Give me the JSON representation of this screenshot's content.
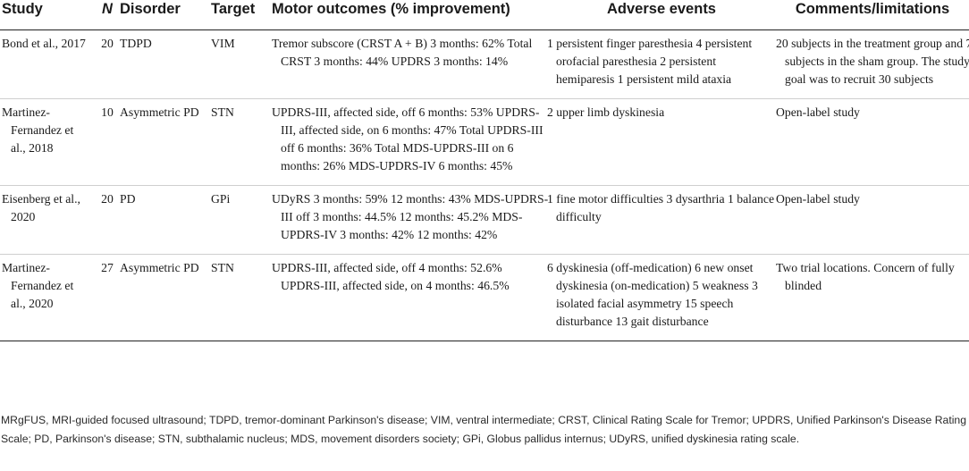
{
  "table": {
    "headers": {
      "study": "Study",
      "n": "N",
      "disorder": "Disorder",
      "target": "Target",
      "motor": "Motor outcomes (% improvement)",
      "adverse": "Adverse events",
      "comments": "Comments/limitations"
    },
    "rows": [
      {
        "study": "Bond et al., 2017",
        "n": "20",
        "disorder": "TDPD",
        "target": "VIM",
        "motor": "Tremor subscore (CRST A + B) 3 months: 62% Total CRST 3 months: 44% UPDRS 3 months: 14%",
        "adverse": "1 persistent finger paresthesia 4 persistent orofacial paresthesia 2 persistent hemiparesis 1 persistent mild ataxia",
        "comments": "20 subjects in the treatment group and 7 subjects in the sham group. The study goal was to recruit 30 subjects"
      },
      {
        "study": "Martinez-Fernandez et al., 2018",
        "n": "10",
        "disorder": "Asymmetric PD",
        "target": "STN",
        "motor": "UPDRS-III, affected side, off 6 months: 53% UPDRS-III, affected side, on 6 months: 47% Total UPDRS-III off 6 months: 36% Total MDS-UPDRS-III on 6 months: 26% MDS-UPDRS-IV 6 months: 45%",
        "adverse": "2 upper limb dyskinesia",
        "comments": "Open-label study"
      },
      {
        "study": "Eisenberg et al., 2020",
        "n": "20",
        "disorder": "PD",
        "target": "GPi",
        "motor": "UDyRS 3 months: 59% 12 months: 43% MDS-UPDRS-III off 3 months: 44.5% 12 months: 45.2% MDS-UPDRS-IV 3 months: 42% 12 months: 42%",
        "adverse": "1 fine motor difficulties 3 dysarthria 1 balance difficulty",
        "comments": "Open-label study"
      },
      {
        "study": "Martinez-Fernandez et al., 2020",
        "n": "27",
        "disorder": "Asymmetric PD",
        "target": "STN",
        "motor": "UPDRS-III, affected side, off 4 months: 52.6% UPDRS-III, affected side, on 4 months: 46.5%",
        "adverse": "6 dyskinesia (off-medication) 6 new onset dyskinesia (on-medication) 5 weakness 3 isolated facial asymmetry 15 speech disturbance 13 gait disturbance",
        "comments": "Two trial locations. Concern of fully blinded"
      }
    ]
  },
  "footnote": "MRgFUS, MRI-guided focused ultrasound; TDPD, tremor-dominant Parkinson's disease; VIM, ventral intermediate; CRST, Clinical Rating Scale for Tremor; UPDRS, Unified Parkinson's Disease Rating Scale; PD, Parkinson's disease; STN, subthalamic nucleus; MDS, movement disorders society; GPi, Globus pallidus internus; UDyRS, unified dyskinesia rating scale."
}
